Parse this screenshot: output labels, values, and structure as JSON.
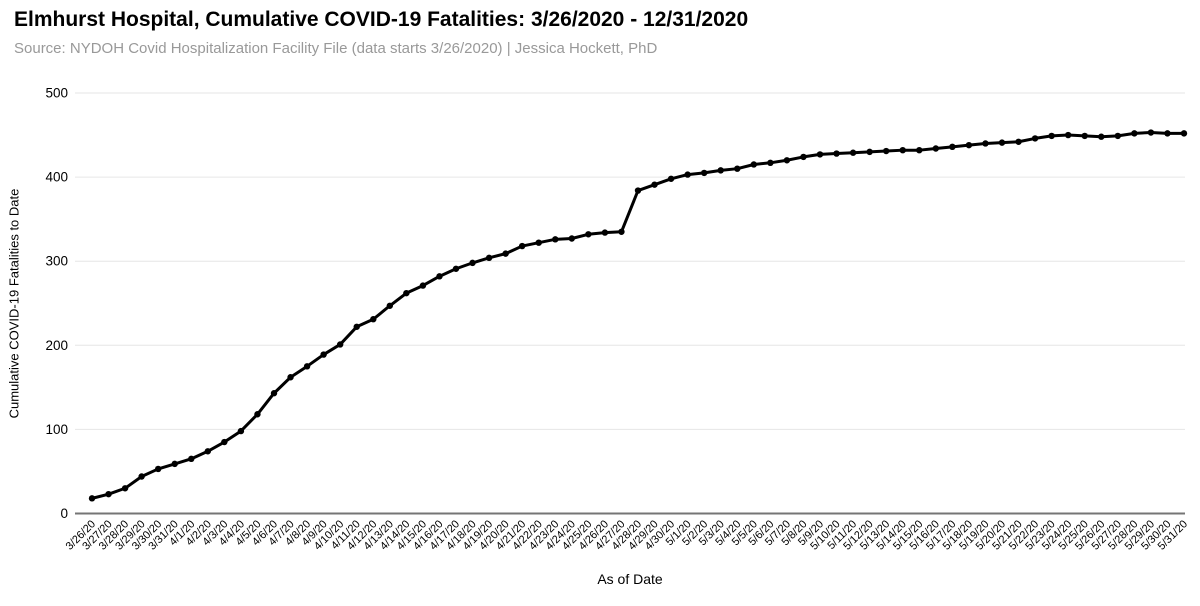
{
  "header": {
    "title": "Elmhurst Hospital, Cumulative COVID-19 Fatalities: 3/26/2020 - 12/31/2020",
    "subtitle": "Source: NYDOH Covid Hospitalization Facility File (data starts 3/26/2020) | Jessica Hockett, PhD"
  },
  "chart_data": {
    "type": "line",
    "title": "Elmhurst Hospital, Cumulative COVID-19 Fatalities: 3/26/2020 - 12/31/2020",
    "xlabel": "As of Date",
    "ylabel": "Cumulative COVID-19 Fatalities to Date",
    "ylim": [
      0,
      500
    ],
    "y_ticks": [
      0,
      100,
      200,
      300,
      400,
      500
    ],
    "grid": true,
    "legend_position": "none",
    "series_name": "Cumulative COVID-19 fatalities to date",
    "line_color": "#000000",
    "marker": "circle",
    "grid_color": "#e6e6e6",
    "axis_color": "#757575",
    "categories": [
      "3/26/20",
      "3/27/20",
      "3/28/20",
      "3/29/20",
      "3/30/20",
      "3/31/20",
      "4/1/20",
      "4/2/20",
      "4/3/20",
      "4/4/20",
      "4/5/20",
      "4/6/20",
      "4/7/20",
      "4/8/20",
      "4/9/20",
      "4/10/20",
      "4/11/20",
      "4/12/20",
      "4/13/20",
      "4/14/20",
      "4/15/20",
      "4/16/20",
      "4/17/20",
      "4/18/20",
      "4/19/20",
      "4/20/20",
      "4/21/20",
      "4/22/20",
      "4/23/20",
      "4/24/20",
      "4/25/20",
      "4/26/20",
      "4/27/20",
      "4/28/20",
      "4/29/20",
      "4/30/20",
      "5/1/20",
      "5/2/20",
      "5/3/20",
      "5/4/20",
      "5/5/20",
      "5/6/20",
      "5/7/20",
      "5/8/20",
      "5/9/20",
      "5/10/20",
      "5/11/20",
      "5/12/20",
      "5/13/20",
      "5/14/20",
      "5/15/20",
      "5/16/20",
      "5/17/20",
      "5/18/20",
      "5/19/20",
      "5/20/20",
      "5/21/20",
      "5/22/20",
      "5/23/20",
      "5/24/20",
      "5/25/20",
      "5/26/20",
      "5/27/20",
      "5/28/20",
      "5/29/20",
      "5/30/20",
      "5/31/20"
    ],
    "values": [
      18,
      23,
      30,
      44,
      53,
      59,
      65,
      74,
      85,
      98,
      118,
      143,
      162,
      175,
      189,
      201,
      222,
      231,
      247,
      262,
      271,
      282,
      291,
      298,
      304,
      309,
      318,
      322,
      326,
      327,
      332,
      334,
      335,
      384,
      391,
      398,
      403,
      405,
      408,
      410,
      415,
      417,
      420,
      424,
      427,
      428,
      429,
      430,
      431,
      432,
      432,
      434,
      436,
      438,
      440,
      441,
      442,
      446,
      449,
      450,
      449,
      448,
      449,
      452,
      453,
      452,
      452
    ]
  }
}
